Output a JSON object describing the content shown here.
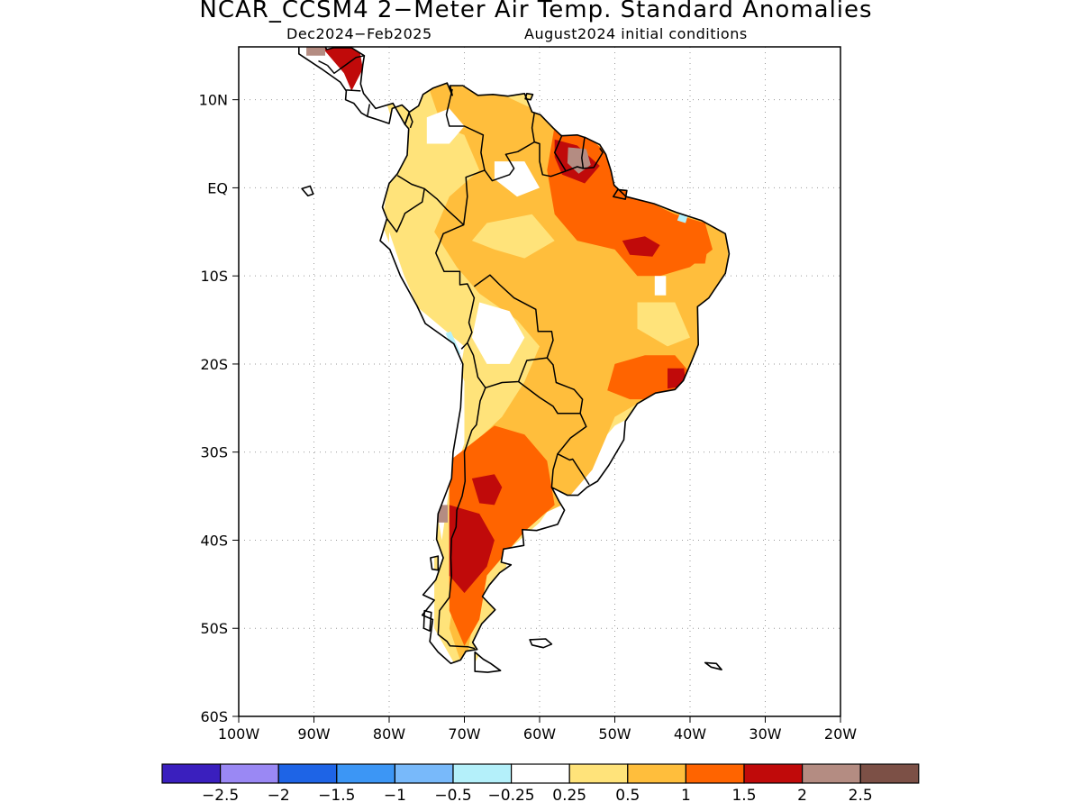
{
  "title": "NCAR_CCSM4 2−Meter Air Temp. Standard Anomalies",
  "subtitle_period": "Dec2024−Feb2025",
  "subtitle_init": "August2024 initial conditions",
  "map": {
    "lon_range": [
      -100,
      -20
    ],
    "lat_range": [
      -60,
      16
    ],
    "lat_ticks": [
      {
        "value": 10,
        "label": "10N"
      },
      {
        "value": 0,
        "label": "EQ"
      },
      {
        "value": -10,
        "label": "10S"
      },
      {
        "value": -20,
        "label": "20S"
      },
      {
        "value": -30,
        "label": "30S"
      },
      {
        "value": -40,
        "label": "40S"
      },
      {
        "value": -50,
        "label": "50S"
      },
      {
        "value": -60,
        "label": "60S"
      }
    ],
    "lon_ticks": [
      {
        "value": -100,
        "label": "100W"
      },
      {
        "value": -90,
        "label": "90W"
      },
      {
        "value": -80,
        "label": "80W"
      },
      {
        "value": -70,
        "label": "70W"
      },
      {
        "value": -60,
        "label": "60W"
      },
      {
        "value": -50,
        "label": "50W"
      },
      {
        "value": -40,
        "label": "40W"
      },
      {
        "value": -30,
        "label": "30W"
      },
      {
        "value": -20,
        "label": "20W"
      }
    ],
    "grid": "dotted"
  },
  "colorbar": {
    "colors": [
      "#3a1fbe",
      "#9a88f4",
      "#1e64e6",
      "#3c96f5",
      "#78b9fa",
      "#b4f0fa",
      "#ffffff",
      "#ffe37a",
      "#ffbe3c",
      "#ff6400",
      "#c00a0a",
      "#b48c82",
      "#7c5046"
    ],
    "labels": [
      "−2.5",
      "−2",
      "−1.5",
      "−1",
      "−0.5",
      "−0.25",
      "0.25",
      "0.5",
      "1",
      "1.5",
      "2",
      "2.5"
    ]
  },
  "anomaly_colors": {
    "light_blue": "#b4f0fa",
    "yellow": "#ffe37a",
    "light_orange": "#ffbe3c",
    "orange": "#ff6400",
    "red": "#c00a0a",
    "pink_brown": "#b48c82"
  }
}
